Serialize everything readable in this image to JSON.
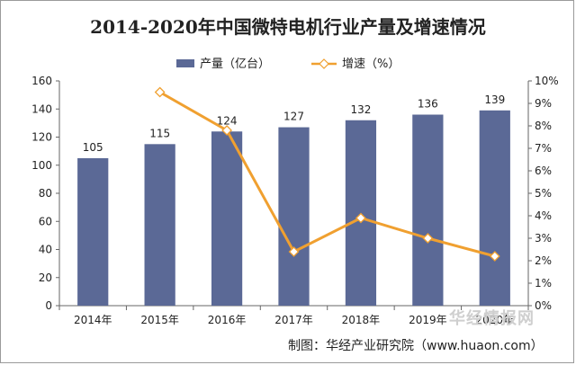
{
  "chart_data": {
    "type": "bar+line",
    "title": "2014-2020年中国微特电机行业产量及增速情况",
    "categories": [
      "2014年",
      "2015年",
      "2016年",
      "2017年",
      "2018年",
      "2019年",
      "2020年"
    ],
    "series": [
      {
        "name": "产量（亿台）",
        "type": "bar",
        "axis": "left",
        "values": [
          105,
          115,
          124,
          127,
          132,
          136,
          139
        ],
        "color": "#5b6996"
      },
      {
        "name": "增速（%）",
        "type": "line",
        "axis": "right",
        "values": [
          null,
          9.5,
          7.8,
          2.4,
          3.9,
          3.0,
          2.2
        ],
        "color": "#f0a030"
      }
    ],
    "y_left": {
      "min": 0,
      "max": 160,
      "step": 20
    },
    "y_right": {
      "min": 0,
      "max": 10,
      "step": 1,
      "unit": "%"
    },
    "legend_position": "top"
  },
  "source": "制图：华经产业研究院（www.huaon.com）",
  "watermark": "华经情报网"
}
